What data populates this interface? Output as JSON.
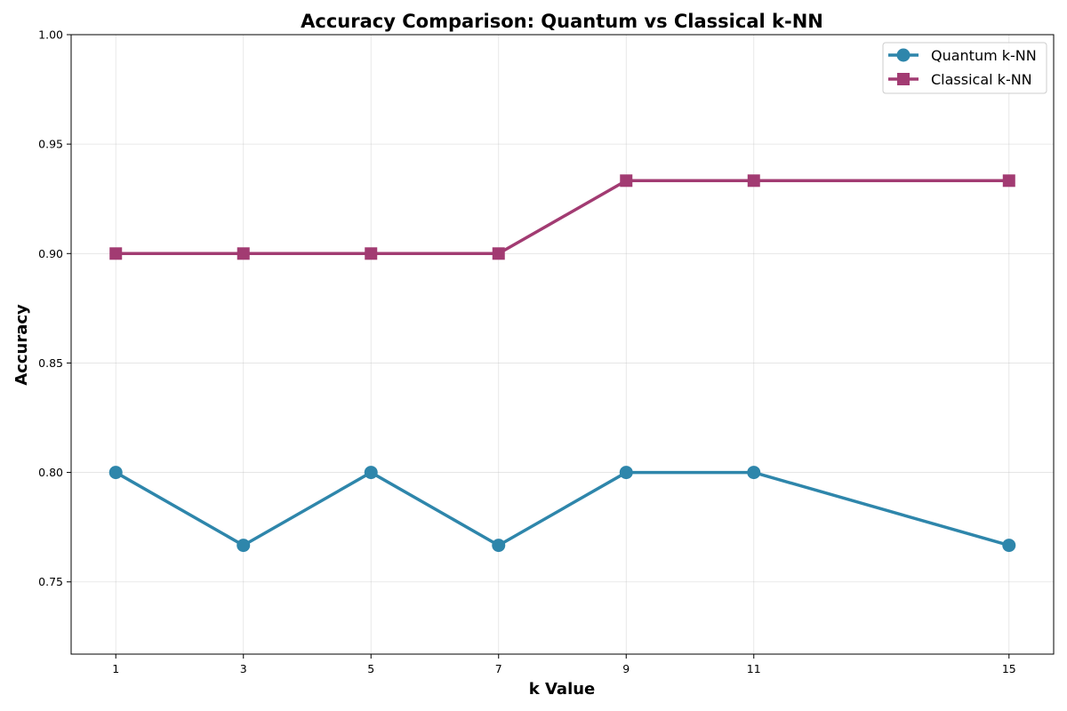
{
  "chart_data": {
    "type": "line",
    "title": "Accuracy Comparison: Quantum vs Classical k-NN",
    "xlabel": "k Value",
    "ylabel": "Accuracy",
    "x": [
      1,
      3,
      5,
      7,
      9,
      11,
      15
    ],
    "xticks": [
      "1",
      "3",
      "5",
      "7",
      "9",
      "11",
      "15"
    ],
    "xlim": [
      0.3,
      15.7
    ],
    "yticks": [
      "0.75",
      "0.80",
      "0.85",
      "0.90",
      "0.95",
      "1.00"
    ],
    "ylim": [
      0.717,
      1.0
    ],
    "grid": true,
    "legend_position": "top-right",
    "series": [
      {
        "name": "Quantum k-NN",
        "values": [
          0.8,
          0.7667,
          0.8,
          0.7667,
          0.8,
          0.8,
          0.7667
        ],
        "color": "#2e86ab",
        "marker": "circle"
      },
      {
        "name": "Classical k-NN",
        "values": [
          0.9,
          0.9,
          0.9,
          0.9,
          0.9333,
          0.9333,
          0.9333
        ],
        "color": "#a23b72",
        "marker": "square"
      }
    ]
  }
}
